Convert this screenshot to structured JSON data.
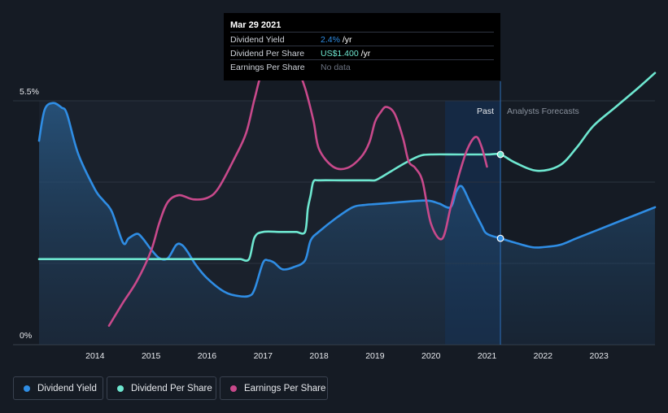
{
  "tooltip": {
    "date": "Mar 29 2021",
    "rows": [
      {
        "label": "Dividend Yield",
        "value": "2.4%",
        "unit": " /yr",
        "color": "#2f8de4"
      },
      {
        "label": "Dividend Per Share",
        "value": "US$1.400",
        "unit": " /yr",
        "color": "#6ee7d0"
      },
      {
        "label": "Earnings Per Share",
        "value": "No data",
        "unit": "",
        "color": "#6b7280"
      }
    ]
  },
  "chart_data": {
    "type": "line",
    "y_max_label": "5.5%",
    "y_min_label": "0%",
    "ylim_percent": [
      0,
      5.5
    ],
    "xlim_years": [
      2013.0,
      2024.0
    ],
    "x_ticks": [
      "2014",
      "2015",
      "2016",
      "2017",
      "2018",
      "2019",
      "2020",
      "2021",
      "2022",
      "2023"
    ],
    "past_label": "Past",
    "forecast_label": "Analysts Forecasts",
    "past_end_year": 2021.24,
    "highlight_start_year": 2020.25,
    "colors": {
      "yield": "#2f8de4",
      "dps": "#6ee7d0",
      "eps": "#c8498b",
      "background": "#151b24"
    },
    "series": [
      {
        "name": "Dividend Yield",
        "unit": "% of price (left axis)",
        "x": [
          2013.0,
          2013.1,
          2013.25,
          2013.4,
          2013.5,
          2013.7,
          2014.0,
          2014.15,
          2014.3,
          2014.5,
          2014.6,
          2014.75,
          2014.85,
          2015.0,
          2015.15,
          2015.3,
          2015.45,
          2015.55,
          2015.65,
          2015.8,
          2016.0,
          2016.3,
          2016.55,
          2016.75,
          2016.85,
          2017.0,
          2017.1,
          2017.2,
          2017.35,
          2017.55,
          2017.75,
          2017.85,
          2018.0,
          2018.3,
          2018.6,
          2018.8,
          2019.0,
          2019.3,
          2019.6,
          2019.85,
          2020.0,
          2020.15,
          2020.35,
          2020.45,
          2020.55,
          2020.7,
          2020.9,
          2021.0,
          2021.24,
          2021.5,
          2021.8,
          2022.0,
          2022.3,
          2022.6,
          2023.0,
          2023.5,
          2024.0
        ],
        "y": [
          4.6,
          5.3,
          5.45,
          5.35,
          5.2,
          4.3,
          3.5,
          3.25,
          3.0,
          2.3,
          2.4,
          2.5,
          2.4,
          2.15,
          1.95,
          1.95,
          2.25,
          2.25,
          2.1,
          1.8,
          1.5,
          1.2,
          1.1,
          1.1,
          1.25,
          1.85,
          1.9,
          1.85,
          1.7,
          1.75,
          1.9,
          2.35,
          2.55,
          2.85,
          3.1,
          3.15,
          3.17,
          3.2,
          3.23,
          3.25,
          3.24,
          3.18,
          3.1,
          3.45,
          3.57,
          3.2,
          2.7,
          2.5,
          2.4,
          2.3,
          2.2,
          2.2,
          2.25,
          2.4,
          2.6,
          2.85,
          3.1
        ]
      },
      {
        "name": "Dividend Per Share",
        "unit": "US$ per share",
        "x": [
          2013.0,
          2013.5,
          2014.0,
          2014.5,
          2015.0,
          2015.5,
          2016.0,
          2016.5,
          2016.6,
          2016.75,
          2016.85,
          2017.0,
          2017.3,
          2017.5,
          2017.6,
          2017.75,
          2017.8,
          2017.85,
          2017.9,
          2018.0,
          2018.4,
          2018.7,
          2018.9,
          2019.0,
          2019.1,
          2019.3,
          2019.55,
          2019.8,
          2020.0,
          2020.5,
          2021.0,
          2021.24,
          2021.5,
          2021.9,
          2022.3,
          2022.6,
          2022.9,
          2023.3,
          2023.7,
          2024.0
        ],
        "y": [
          0.63,
          0.63,
          0.63,
          0.63,
          0.63,
          0.63,
          0.63,
          0.63,
          0.63,
          0.63,
          0.79,
          0.83,
          0.83,
          0.83,
          0.83,
          0.83,
          1.0,
          1.1,
          1.2,
          1.21,
          1.21,
          1.21,
          1.21,
          1.21,
          1.23,
          1.28,
          1.34,
          1.39,
          1.4,
          1.4,
          1.4,
          1.4,
          1.34,
          1.28,
          1.32,
          1.45,
          1.61,
          1.75,
          1.89,
          2.0
        ]
      },
      {
        "name": "Earnings Per Share",
        "unit": "US$ per share",
        "x": [
          2014.25,
          2014.5,
          2014.75,
          2015.0,
          2015.15,
          2015.3,
          2015.5,
          2015.75,
          2016.0,
          2016.2,
          2016.5,
          2016.7,
          2016.85,
          2017.0,
          2017.25,
          2017.45,
          2017.6,
          2017.75,
          2017.9,
          2018.0,
          2018.25,
          2018.5,
          2018.75,
          2018.9,
          2019.0,
          2019.1,
          2019.2,
          2019.35,
          2019.5,
          2019.6,
          2019.72,
          2019.85,
          2020.0,
          2020.2,
          2020.35,
          2020.5,
          2020.65,
          2020.8,
          2020.9,
          2021.0
        ],
        "y": [
          0.14,
          0.31,
          0.47,
          0.69,
          0.9,
          1.05,
          1.1,
          1.07,
          1.08,
          1.15,
          1.38,
          1.56,
          1.81,
          2.02,
          2.09,
          2.1,
          2.04,
          1.89,
          1.65,
          1.44,
          1.31,
          1.3,
          1.38,
          1.49,
          1.64,
          1.71,
          1.75,
          1.7,
          1.52,
          1.35,
          1.3,
          1.2,
          0.89,
          0.78,
          1.01,
          1.25,
          1.44,
          1.53,
          1.46,
          1.31
        ]
      }
    ]
  },
  "legend": [
    {
      "label": "Dividend Yield",
      "color": "#2f8de4"
    },
    {
      "label": "Dividend Per Share",
      "color": "#6ee7d0"
    },
    {
      "label": "Earnings Per Share",
      "color": "#c8498b"
    }
  ]
}
